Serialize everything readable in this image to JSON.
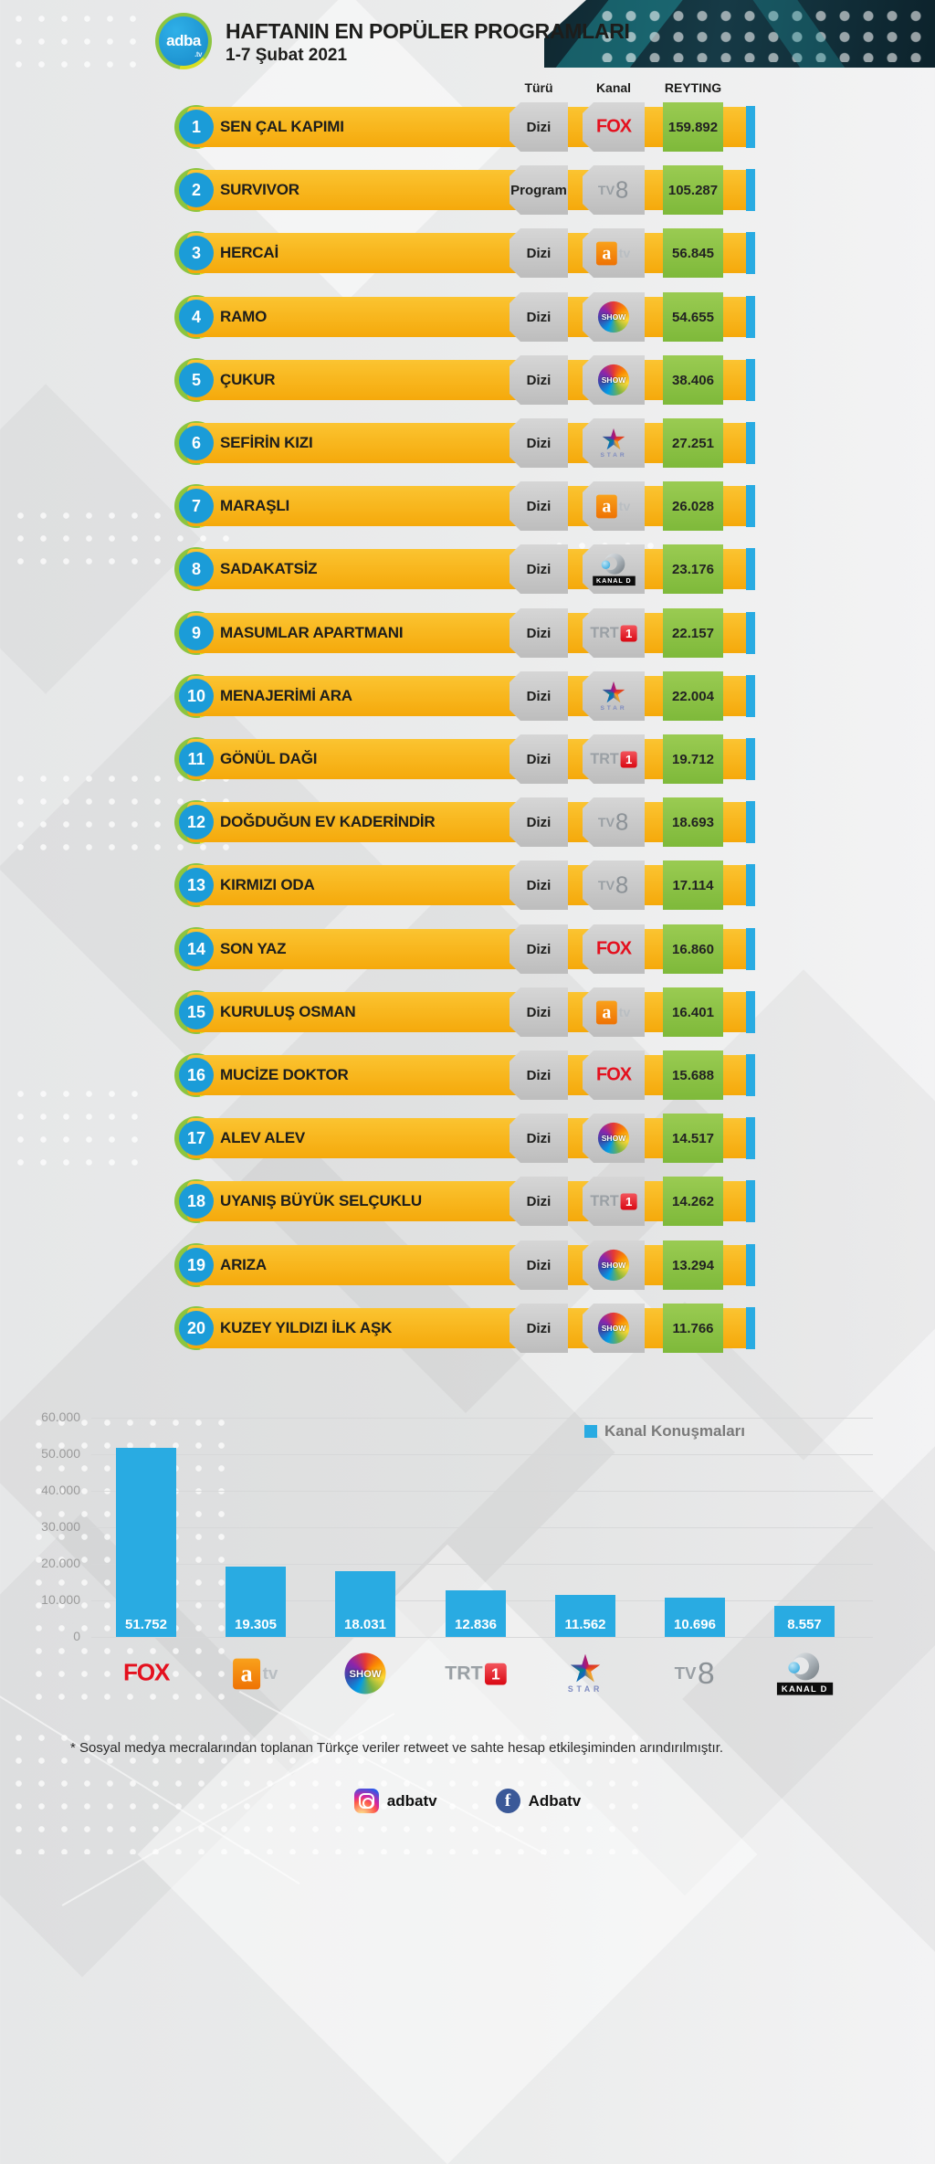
{
  "header": {
    "logo_line1": "adba",
    "logo_line2": ".tv",
    "title": "HAFTANIN EN POPÜLER PROGRAMLARI",
    "subtitle": "1-7 Şubat 2021"
  },
  "columns": {
    "type": "Türü",
    "channel": "Kanal",
    "rating": "REYTING"
  },
  "rows": [
    {
      "rank": "1",
      "name": "SEN ÇAL KAPIMI",
      "type": "Dizi",
      "channel": "fox",
      "rating": "159.892"
    },
    {
      "rank": "2",
      "name": "SURVIVOR",
      "type": "Program",
      "channel": "tv8",
      "rating": "105.287"
    },
    {
      "rank": "3",
      "name": "HERCAİ",
      "type": "Dizi",
      "channel": "atv",
      "rating": "56.845"
    },
    {
      "rank": "4",
      "name": "RAMO",
      "type": "Dizi",
      "channel": "show",
      "rating": "54.655"
    },
    {
      "rank": "5",
      "name": "ÇUKUR",
      "type": "Dizi",
      "channel": "show",
      "rating": "38.406"
    },
    {
      "rank": "6",
      "name": "SEFİRİN KIZI",
      "type": "Dizi",
      "channel": "star",
      "rating": "27.251"
    },
    {
      "rank": "7",
      "name": "MARAŞLI",
      "type": "Dizi",
      "channel": "atv",
      "rating": "26.028"
    },
    {
      "rank": "8",
      "name": "SADAKATSİZ",
      "type": "Dizi",
      "channel": "kanald",
      "rating": "23.176"
    },
    {
      "rank": "9",
      "name": "MASUMLAR APARTMANI",
      "type": "Dizi",
      "channel": "trt1",
      "rating": "22.157"
    },
    {
      "rank": "10",
      "name": "MENAJERİMİ ARA",
      "type": "Dizi",
      "channel": "star",
      "rating": "22.004"
    },
    {
      "rank": "11",
      "name": "GÖNÜL DAĞI",
      "type": "Dizi",
      "channel": "trt1",
      "rating": "19.712"
    },
    {
      "rank": "12",
      "name": "DOĞDUĞUN EV KADERİNDİR",
      "type": "Dizi",
      "channel": "tv8",
      "rating": "18.693"
    },
    {
      "rank": "13",
      "name": "KIRMIZI ODA",
      "type": "Dizi",
      "channel": "tv8",
      "rating": "17.114"
    },
    {
      "rank": "14",
      "name": "SON YAZ",
      "type": "Dizi",
      "channel": "fox",
      "rating": "16.860"
    },
    {
      "rank": "15",
      "name": "KURULUŞ OSMAN",
      "type": "Dizi",
      "channel": "atv",
      "rating": "16.401"
    },
    {
      "rank": "16",
      "name": "MUCİZE DOKTOR",
      "type": "Dizi",
      "channel": "fox",
      "rating": "15.688"
    },
    {
      "rank": "17",
      "name": "ALEV ALEV",
      "type": "Dizi",
      "channel": "show",
      "rating": "14.517"
    },
    {
      "rank": "18",
      "name": "UYANIŞ BÜYÜK SELÇUKLU",
      "type": "Dizi",
      "channel": "trt1",
      "rating": "14.262"
    },
    {
      "rank": "19",
      "name": "ARIZA",
      "type": "Dizi",
      "channel": "show",
      "rating": "13.294"
    },
    {
      "rank": "20",
      "name": "KUZEY YILDIZI İLK AŞK",
      "type": "Dizi",
      "channel": "show",
      "rating": "11.766"
    }
  ],
  "chart_data": {
    "type": "bar",
    "legend": "Kanal Konuşmaları",
    "legend_position": "top-right",
    "categories": [
      "FOX",
      "atv",
      "SHOW TV",
      "TRT 1",
      "STAR TV",
      "TV8",
      "KANAL D"
    ],
    "category_keys": [
      "fox",
      "atv",
      "show",
      "trt1",
      "star",
      "tv8",
      "kanald"
    ],
    "values": [
      51752,
      19305,
      18031,
      12836,
      11562,
      10696,
      8557
    ],
    "value_labels": [
      "51.752",
      "19.305",
      "18.031",
      "12.836",
      "11.562",
      "10.696",
      "8.557"
    ],
    "ytick_labels": [
      "60.000",
      "50.000",
      "40.000",
      "30.000",
      "20.000",
      "10.000",
      "0"
    ],
    "ylim": [
      0,
      60000
    ],
    "grid": true,
    "bar_color": "#29ABE2"
  },
  "footer": {
    "disclaimer": "* Sosyal medya mecralarından toplanan Türkçe veriler retweet ve sahte hesap etkileşiminden arındırılmıştır.",
    "instagram_handle": "adbatv",
    "facebook_handle": "Adbatv"
  },
  "colors": {
    "bar_yellow": "#F8B617",
    "rating_green": "#8CC540",
    "accent_blue": "#29ABE2",
    "box_gray": "#C8C8C8",
    "circle_blue": "#1B9CD8"
  }
}
